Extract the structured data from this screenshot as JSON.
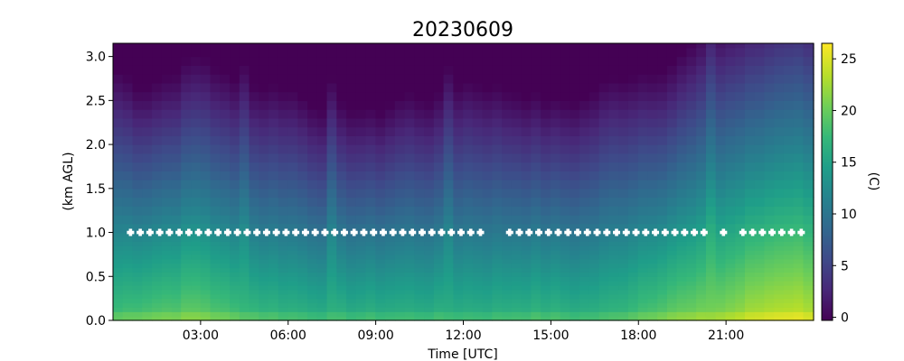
{
  "chart_data": {
    "type": "heatmap",
    "title": "20230609",
    "xlabel": "Time [UTC]",
    "ylabel": "(km AGL)",
    "xlim": [
      0,
      24
    ],
    "ylim": [
      0,
      3.15
    ],
    "x_ticks": [
      {
        "value": 3,
        "label": "03:00"
      },
      {
        "value": 6,
        "label": "06:00"
      },
      {
        "value": 9,
        "label": "09:00"
      },
      {
        "value": 12,
        "label": "12:00"
      },
      {
        "value": 15,
        "label": "15:00"
      },
      {
        "value": 18,
        "label": "18:00"
      },
      {
        "value": 21,
        "label": "21:00"
      }
    ],
    "y_ticks": [
      {
        "value": 0.0,
        "label": "0.0"
      },
      {
        "value": 0.5,
        "label": "0.5"
      },
      {
        "value": 1.0,
        "label": "1.0"
      },
      {
        "value": 1.5,
        "label": "1.5"
      },
      {
        "value": 2.0,
        "label": "2.0"
      },
      {
        "value": 2.5,
        "label": "2.5"
      },
      {
        "value": 3.0,
        "label": "3.0"
      }
    ],
    "colorbar": {
      "label": "(C)",
      "colormap": "viridis",
      "vmin": -0.3,
      "vmax": 26.5,
      "ticks": [
        {
          "value": 0,
          "label": "0"
        },
        {
          "value": 5,
          "label": "5"
        },
        {
          "value": 10,
          "label": "10"
        },
        {
          "value": 15,
          "label": "15"
        },
        {
          "value": 20,
          "label": "20"
        },
        {
          "value": 25,
          "label": "25"
        }
      ]
    },
    "time_bin_hours": 0.333,
    "height_levels_km": [
      0.0,
      0.05,
      0.1,
      0.15,
      0.2,
      0.25,
      0.3,
      0.35,
      0.4,
      0.45,
      0.5,
      0.55,
      0.6,
      0.65,
      0.7,
      0.75,
      0.8,
      0.85,
      0.9,
      0.95,
      1.0,
      1.1,
      1.2,
      1.3,
      1.4,
      1.5,
      1.6,
      1.7,
      1.8,
      1.9,
      2.0,
      2.1,
      2.2,
      2.3,
      2.4,
      2.5,
      2.6,
      2.7,
      2.8,
      2.9,
      3.0,
      3.1
    ],
    "temperature_profile_model": {
      "surface_by_hour": [
        [
          0,
          18.5
        ],
        [
          1,
          19.5
        ],
        [
          2,
          20.0
        ],
        [
          3,
          20.5
        ],
        [
          4,
          19.0
        ],
        [
          5,
          18.0
        ],
        [
          6,
          17.5
        ],
        [
          7,
          17.0
        ],
        [
          8,
          17.0
        ],
        [
          9,
          17.0
        ],
        [
          10,
          17.0
        ],
        [
          11,
          17.0
        ],
        [
          12,
          17.0
        ],
        [
          13,
          17.0
        ],
        [
          14,
          17.5
        ],
        [
          15,
          17.5
        ],
        [
          16,
          17.0
        ],
        [
          17,
          17.5
        ],
        [
          18,
          19.0
        ],
        [
          19,
          20.5
        ],
        [
          20,
          21.0
        ],
        [
          21,
          22.0
        ],
        [
          22,
          23.5
        ],
        [
          23,
          24.5
        ],
        [
          24,
          24.0
        ]
      ],
      "lapse_c_per_km": 6.5,
      "top_minus_by_hour": [
        [
          0,
          0
        ],
        [
          1,
          -2.5
        ],
        [
          2,
          -2.0
        ],
        [
          3,
          -1.0
        ],
        [
          4,
          -1.5
        ],
        [
          5,
          -1.0
        ],
        [
          6,
          -0.5
        ],
        [
          7,
          -1.5
        ],
        [
          8,
          -1.5
        ],
        [
          9,
          -2.0
        ],
        [
          10,
          -0.5
        ],
        [
          11,
          -1.0
        ],
        [
          12,
          0.5
        ],
        [
          13,
          0
        ],
        [
          14,
          -1.0
        ],
        [
          15,
          -1.5
        ],
        [
          16,
          -1.0
        ],
        [
          17,
          0
        ],
        [
          18,
          -1.0
        ],
        [
          19,
          -2.0
        ],
        [
          20,
          -0.5
        ],
        [
          21,
          0
        ],
        [
          22,
          -0.5
        ],
        [
          23,
          0
        ],
        [
          24,
          0
        ]
      ],
      "warm_columns_hours": [
        4.6,
        7.5,
        11.5,
        20.5
      ]
    },
    "marker_series": {
      "y_km": 1.0,
      "x_start_hours": 0.6,
      "x_end_hours": 23.7,
      "step_hours": 0.333,
      "gaps_hours": [
        [
          12.9,
          13.5
        ],
        [
          20.4,
          20.9
        ],
        [
          21.1,
          21.5
        ]
      ]
    }
  }
}
